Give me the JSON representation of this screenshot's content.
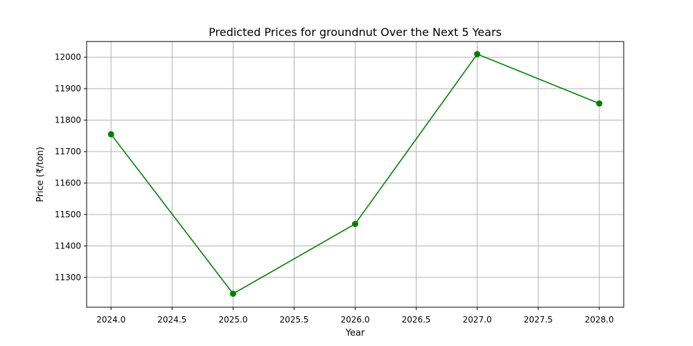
{
  "chart_data": {
    "type": "line",
    "title": "Predicted Prices for groundnut Over the Next 5 Years",
    "xlabel": "Year",
    "ylabel": "Price (₹/ton)",
    "x": [
      2024,
      2025,
      2026,
      2027,
      2028
    ],
    "series": [
      {
        "values": [
          11755,
          11248,
          11470,
          12010,
          11853
        ]
      }
    ],
    "xlim": [
      2023.8,
      2028.2
    ],
    "ylim": [
      11205,
      12050
    ],
    "xticks": [
      "2024.0",
      "2024.5",
      "2025.0",
      "2025.5",
      "2026.0",
      "2026.5",
      "2027.0",
      "2027.5",
      "2028.0"
    ],
    "yticks": [
      "11300",
      "11400",
      "11500",
      "11600",
      "11700",
      "11800",
      "11900",
      "12000"
    ],
    "grid": true,
    "line_color": "#008000",
    "marker": "circle"
  }
}
